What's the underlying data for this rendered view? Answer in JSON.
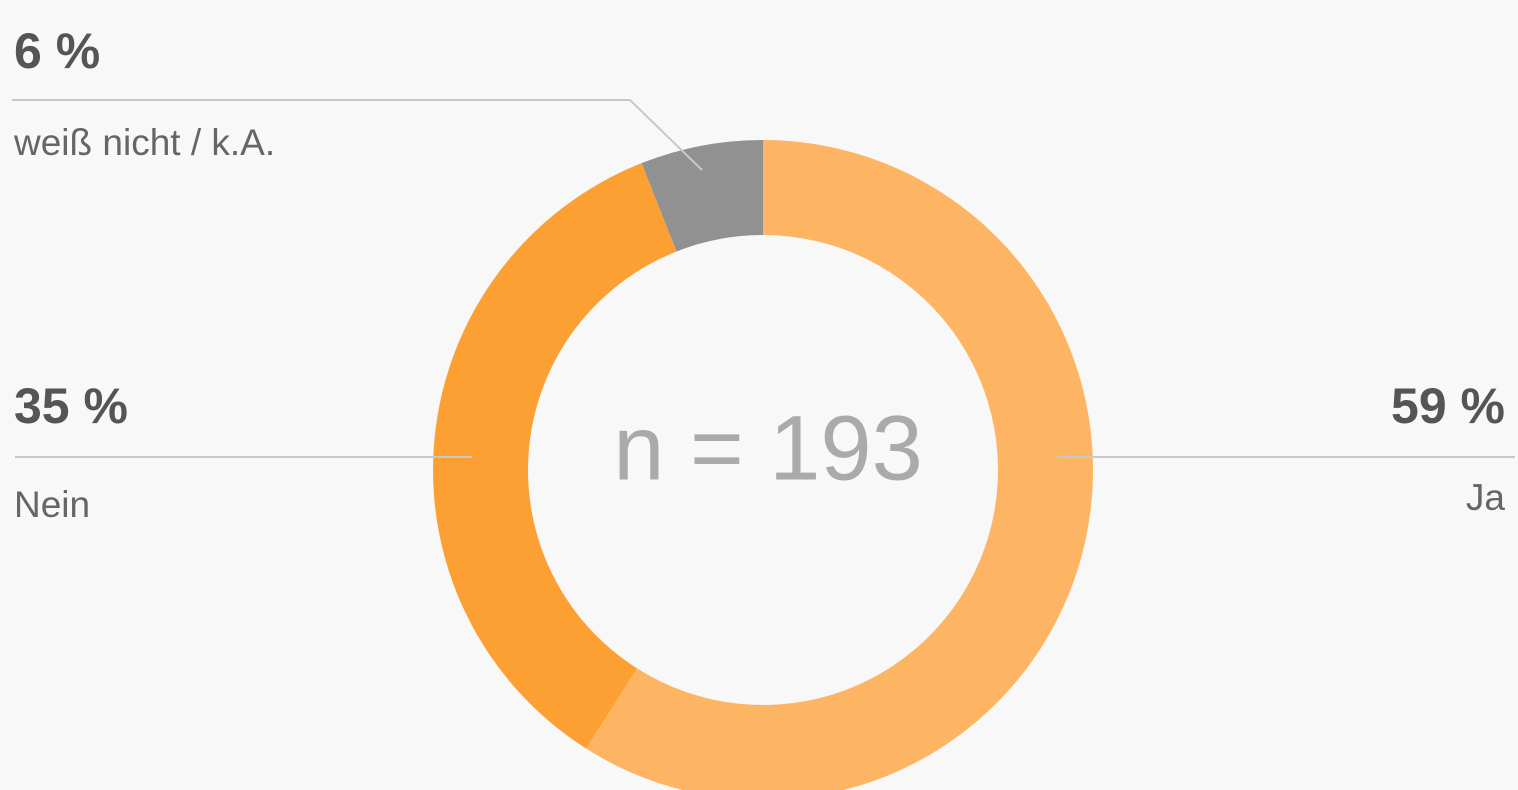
{
  "chart_data": {
    "type": "pie",
    "categories": [
      "Ja",
      "Nein",
      "weiß nicht / k.A."
    ],
    "values": [
      59,
      35,
      6
    ],
    "value_labels": [
      "59 %",
      "35 %",
      "6 %"
    ],
    "colors": [
      "#fdb563",
      "#fca033",
      "#919191"
    ],
    "annotation": "n = 193"
  }
}
